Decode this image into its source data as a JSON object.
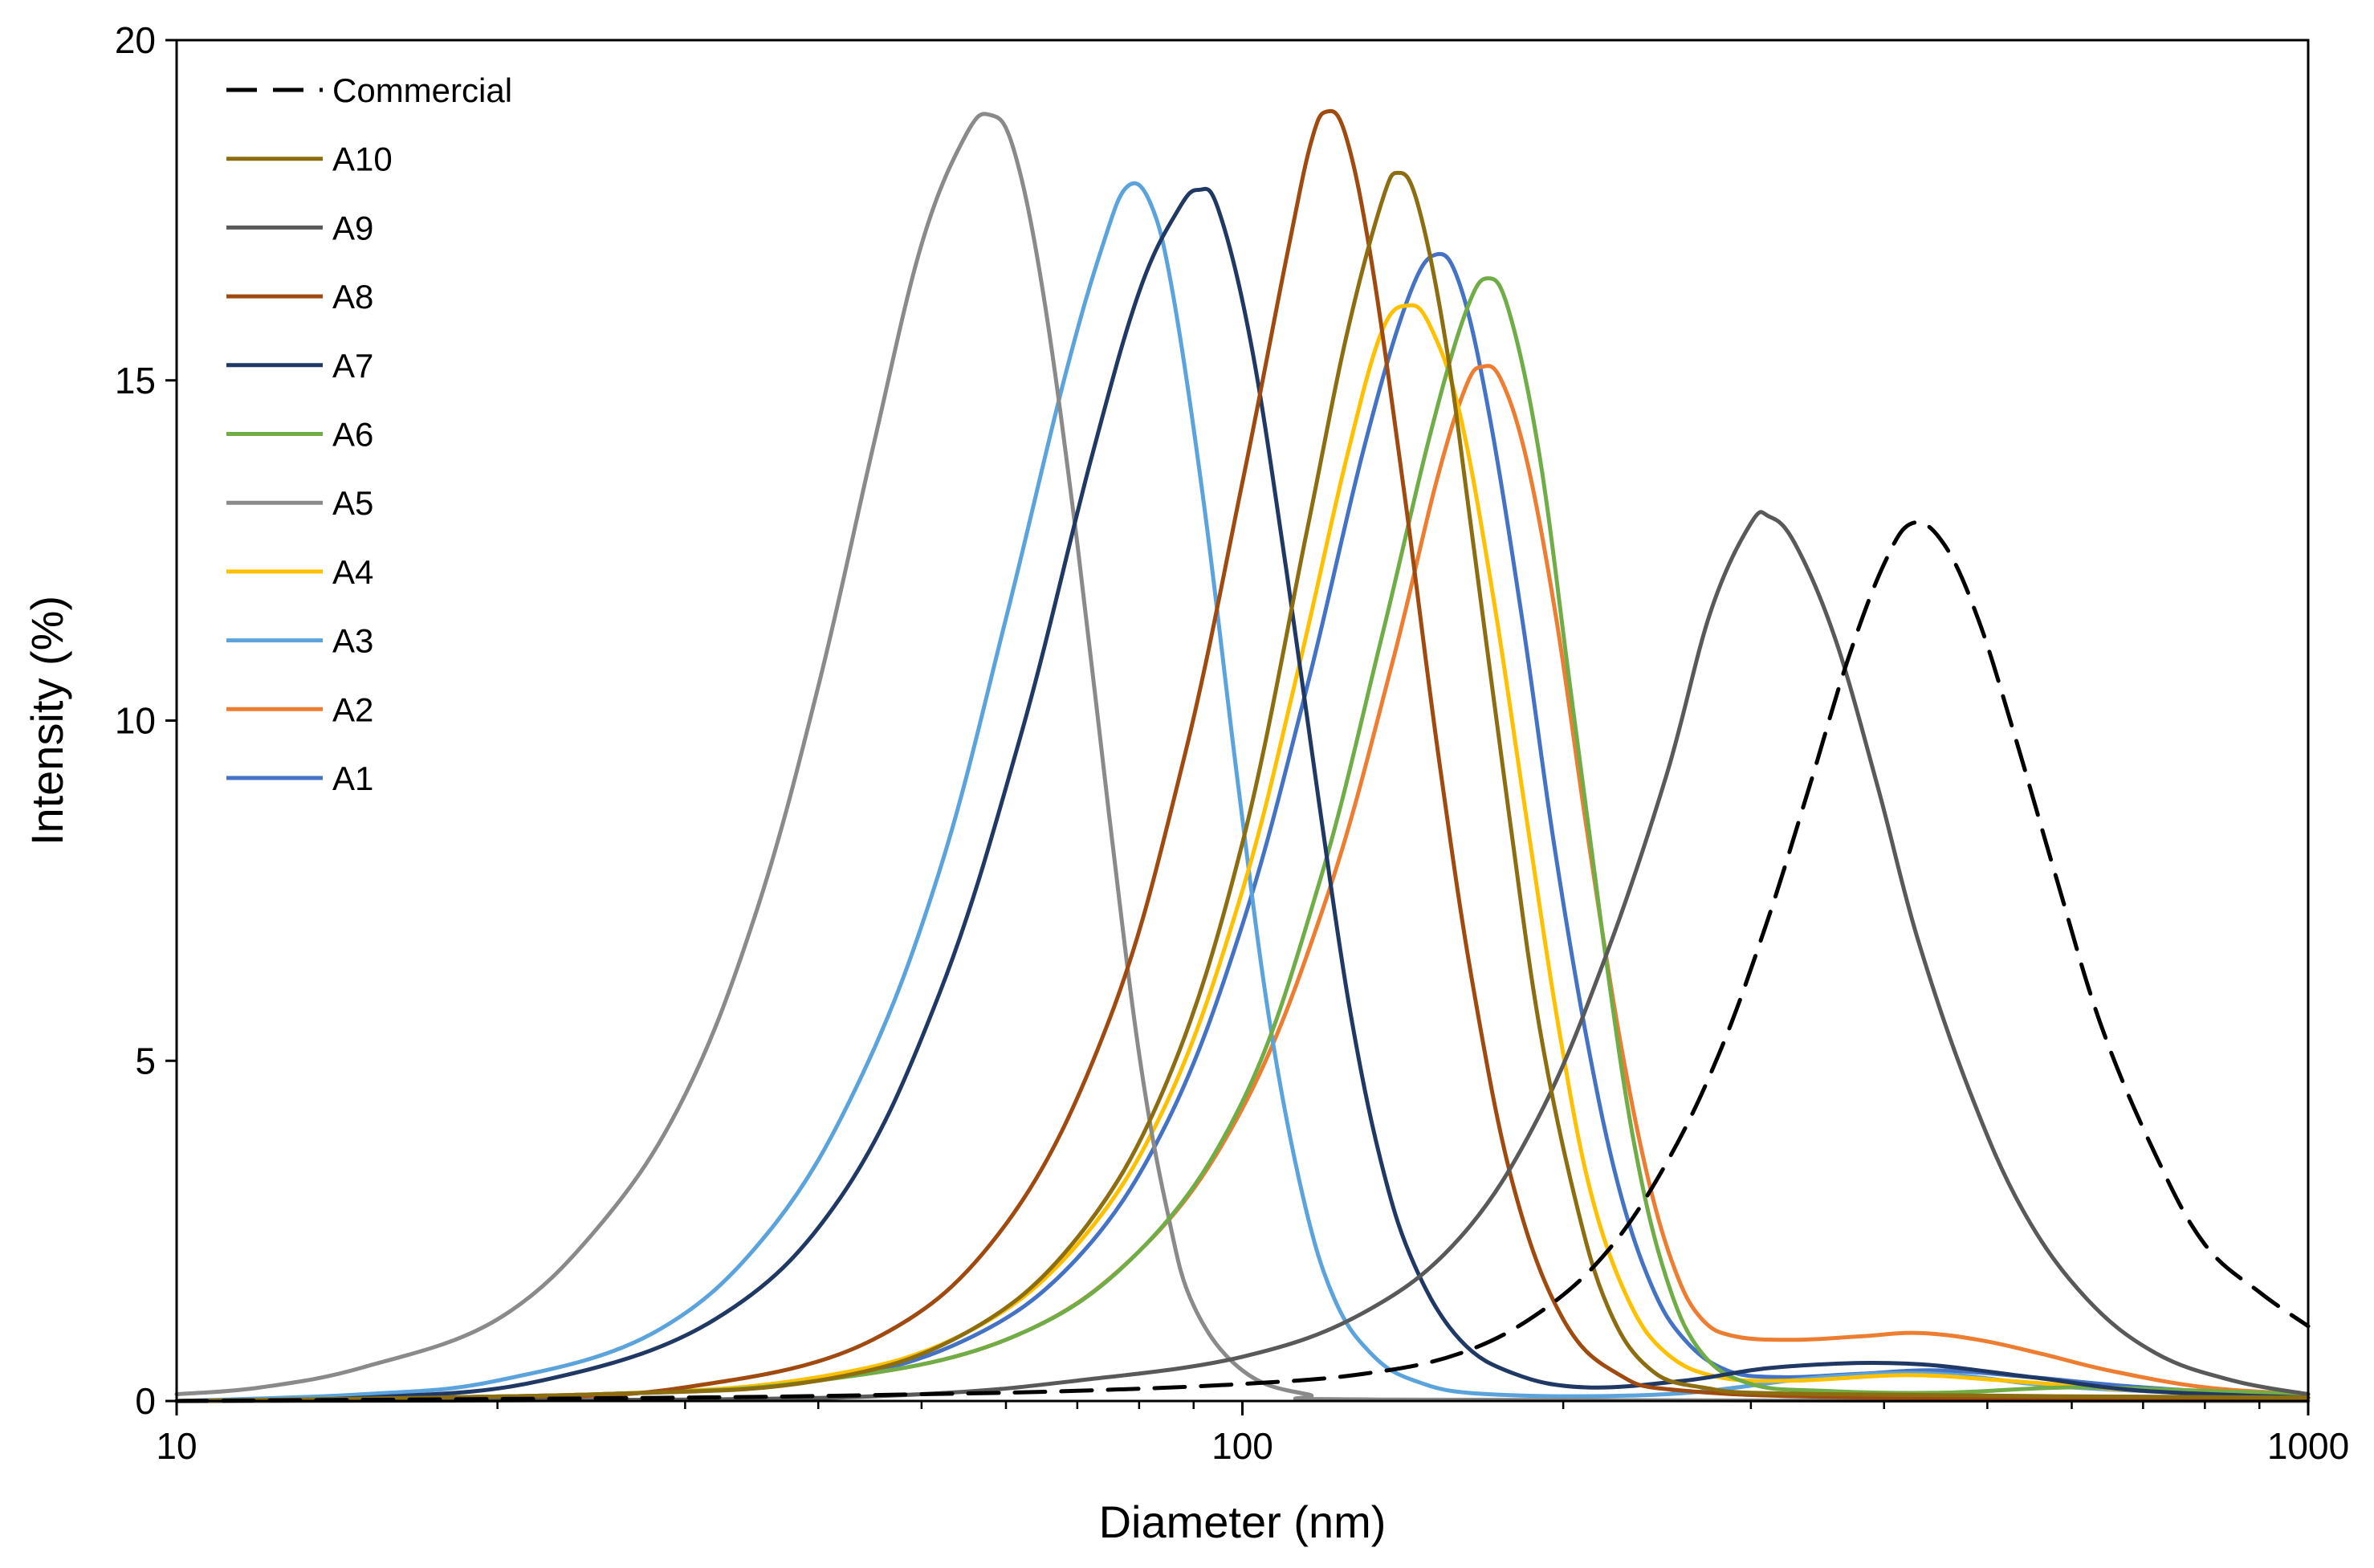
{
  "chart_data": {
    "type": "line",
    "title": "",
    "xlabel": "Diameter (nm)",
    "ylabel": "Intensity (%)",
    "xscale": "log",
    "xlim": [
      10,
      1000
    ],
    "ylim": [
      0,
      20
    ],
    "xticks": [
      10,
      100,
      1000
    ],
    "xtick_labels": [
      "10",
      "100",
      "1000"
    ],
    "yticks": [
      0,
      5,
      10,
      15,
      20
    ],
    "ytick_labels": [
      "0",
      "5",
      "10",
      "15",
      "20"
    ],
    "grid": false,
    "legend_position": "top-left",
    "series": [
      {
        "name": "Commercial",
        "color": "#000000",
        "style": "dashed",
        "width": 5,
        "points": [
          [
            10,
            0
          ],
          [
            30,
            0.05
          ],
          [
            50,
            0.1
          ],
          [
            70,
            0.15
          ],
          [
            100,
            0.25
          ],
          [
            130,
            0.4
          ],
          [
            160,
            0.7
          ],
          [
            190,
            1.3
          ],
          [
            220,
            2.2
          ],
          [
            250,
            3.5
          ],
          [
            280,
            5.1
          ],
          [
            310,
            7.0
          ],
          [
            340,
            9.0
          ],
          [
            370,
            10.9
          ],
          [
            400,
            12.3
          ],
          [
            425,
            12.9
          ],
          [
            455,
            12.6
          ],
          [
            490,
            11.5
          ],
          [
            530,
            9.8
          ],
          [
            580,
            7.7
          ],
          [
            640,
            5.5
          ],
          [
            720,
            3.6
          ],
          [
            800,
            2.3
          ],
          [
            900,
            1.6
          ],
          [
            1000,
            1.1
          ]
        ]
      },
      {
        "name": "A10",
        "color": "#8c6d10",
        "style": "solid",
        "width": 5,
        "points": [
          [
            10,
            0
          ],
          [
            25,
            0.1
          ],
          [
            40,
            0.3
          ],
          [
            55,
            1.0
          ],
          [
            70,
            2.4
          ],
          [
            85,
            4.7
          ],
          [
            100,
            8.2
          ],
          [
            115,
            12.8
          ],
          [
            125,
            15.6
          ],
          [
            135,
            17.6
          ],
          [
            140,
            18.05
          ],
          [
            146,
            17.6
          ],
          [
            155,
            15.6
          ],
          [
            165,
            12.5
          ],
          [
            178,
            8.6
          ],
          [
            190,
            5.5
          ],
          [
            205,
            3.0
          ],
          [
            220,
            1.4
          ],
          [
            240,
            0.5
          ],
          [
            270,
            0.2
          ],
          [
            350,
            0.1
          ],
          [
            1000,
            0.05
          ]
        ]
      },
      {
        "name": "A9",
        "color": "#595959",
        "style": "solid",
        "width": 5,
        "points": [
          [
            10,
            0
          ],
          [
            30,
            0.02
          ],
          [
            50,
            0.1
          ],
          [
            70,
            0.3
          ],
          [
            100,
            0.65
          ],
          [
            130,
            1.3
          ],
          [
            160,
            2.4
          ],
          [
            190,
            4.2
          ],
          [
            220,
            6.6
          ],
          [
            250,
            9.2
          ],
          [
            275,
            11.6
          ],
          [
            300,
            12.9
          ],
          [
            312,
            13.0
          ],
          [
            330,
            12.6
          ],
          [
            360,
            11.2
          ],
          [
            395,
            9.0
          ],
          [
            430,
            6.8
          ],
          [
            480,
            4.6
          ],
          [
            540,
            2.8
          ],
          [
            620,
            1.5
          ],
          [
            720,
            0.7
          ],
          [
            850,
            0.3
          ],
          [
            1000,
            0.1
          ]
        ]
      },
      {
        "name": "A8",
        "color": "#a14a10",
        "style": "solid",
        "width": 5,
        "points": [
          [
            10,
            0
          ],
          [
            20,
            0.05
          ],
          [
            30,
            0.2
          ],
          [
            45,
            0.9
          ],
          [
            60,
            2.6
          ],
          [
            75,
            5.6
          ],
          [
            88,
            9.4
          ],
          [
            100,
            13.5
          ],
          [
            110,
            16.8
          ],
          [
            116,
            18.5
          ],
          [
            120,
            18.95
          ],
          [
            125,
            18.6
          ],
          [
            132,
            16.8
          ],
          [
            142,
            13.3
          ],
          [
            153,
            9.4
          ],
          [
            165,
            6.0
          ],
          [
            180,
            3.1
          ],
          [
            200,
            1.2
          ],
          [
            225,
            0.4
          ],
          [
            260,
            0.15
          ],
          [
            400,
            0.05
          ],
          [
            1000,
            0.05
          ]
        ]
      },
      {
        "name": "A7",
        "color": "#1f3864",
        "style": "solid",
        "width": 5,
        "points": [
          [
            10,
            0
          ],
          [
            15,
            0.05
          ],
          [
            22,
            0.3
          ],
          [
            32,
            1.2
          ],
          [
            42,
            3.0
          ],
          [
            52,
            6.0
          ],
          [
            62,
            9.8
          ],
          [
            72,
            13.8
          ],
          [
            80,
            16.3
          ],
          [
            87,
            17.5
          ],
          [
            91,
            17.8
          ],
          [
            95,
            17.5
          ],
          [
            102,
            15.5
          ],
          [
            110,
            12.2
          ],
          [
            118,
            8.8
          ],
          [
            126,
            5.8
          ],
          [
            135,
            3.5
          ],
          [
            145,
            2.0
          ],
          [
            160,
            0.9
          ],
          [
            180,
            0.4
          ],
          [
            210,
            0.2
          ],
          [
            260,
            0.3
          ],
          [
            320,
            0.5
          ],
          [
            420,
            0.55
          ],
          [
            550,
            0.35
          ],
          [
            700,
            0.15
          ],
          [
            1000,
            0.05
          ]
        ]
      },
      {
        "name": "A6",
        "color": "#70ad47",
        "style": "solid",
        "width": 5,
        "points": [
          [
            10,
            0
          ],
          [
            25,
            0.1
          ],
          [
            40,
            0.3
          ],
          [
            60,
            0.9
          ],
          [
            80,
            2.2
          ],
          [
            100,
            4.4
          ],
          [
            118,
            7.6
          ],
          [
            135,
            11.2
          ],
          [
            150,
            14.2
          ],
          [
            162,
            16.0
          ],
          [
            170,
            16.5
          ],
          [
            178,
            16.0
          ],
          [
            190,
            13.9
          ],
          [
            203,
            10.5
          ],
          [
            218,
            6.8
          ],
          [
            233,
            3.8
          ],
          [
            250,
            1.8
          ],
          [
            270,
            0.7
          ],
          [
            300,
            0.25
          ],
          [
            350,
            0.15
          ],
          [
            450,
            0.12
          ],
          [
            600,
            0.2
          ],
          [
            800,
            0.15
          ],
          [
            1000,
            0.1
          ]
        ]
      },
      {
        "name": "A5",
        "color": "#8a8a8a",
        "style": "solid",
        "width": 5,
        "points": [
          [
            10,
            0.1
          ],
          [
            12,
            0.2
          ],
          [
            15,
            0.5
          ],
          [
            20,
            1.2
          ],
          [
            25,
            2.6
          ],
          [
            30,
            4.5
          ],
          [
            35,
            7.2
          ],
          [
            40,
            10.5
          ],
          [
            45,
            14.0
          ],
          [
            50,
            17.0
          ],
          [
            55,
            18.6
          ],
          [
            58,
            18.9
          ],
          [
            61,
            18.4
          ],
          [
            65,
            16.3
          ],
          [
            70,
            12.6
          ],
          [
            75,
            8.6
          ],
          [
            80,
            5.1
          ],
          [
            85,
            2.8
          ],
          [
            90,
            1.4
          ],
          [
            100,
            0.45
          ],
          [
            115,
            0.1
          ],
          [
            140,
            0.02
          ],
          [
            1000,
            0
          ]
        ]
      },
      {
        "name": "A4",
        "color": "#ffc000",
        "style": "solid",
        "width": 5,
        "points": [
          [
            10,
            0
          ],
          [
            25,
            0.1
          ],
          [
            40,
            0.35
          ],
          [
            55,
            1.0
          ],
          [
            70,
            2.3
          ],
          [
            85,
            4.4
          ],
          [
            100,
            7.5
          ],
          [
            113,
            10.8
          ],
          [
            125,
            13.8
          ],
          [
            135,
            15.7
          ],
          [
            143,
            16.1
          ],
          [
            150,
            15.8
          ],
          [
            160,
            14.5
          ],
          [
            172,
            11.8
          ],
          [
            185,
            8.5
          ],
          [
            198,
            5.5
          ],
          [
            212,
            3.1
          ],
          [
            230,
            1.5
          ],
          [
            250,
            0.7
          ],
          [
            280,
            0.35
          ],
          [
            330,
            0.3
          ],
          [
            420,
            0.38
          ],
          [
            520,
            0.3
          ],
          [
            700,
            0.15
          ],
          [
            1000,
            0.05
          ]
        ]
      },
      {
        "name": "A3",
        "color": "#5ba3dd",
        "style": "solid",
        "width": 5,
        "points": [
          [
            10,
            0
          ],
          [
            15,
            0.1
          ],
          [
            20,
            0.3
          ],
          [
            28,
            1.0
          ],
          [
            36,
            2.5
          ],
          [
            44,
            4.8
          ],
          [
            52,
            7.8
          ],
          [
            60,
            11.5
          ],
          [
            68,
            15.0
          ],
          [
            74,
            17.0
          ],
          [
            78,
            17.85
          ],
          [
            82,
            17.6
          ],
          [
            86,
            16.3
          ],
          [
            92,
            13.2
          ],
          [
            99,
            9.1
          ],
          [
            106,
            5.6
          ],
          [
            114,
            3.0
          ],
          [
            122,
            1.5
          ],
          [
            132,
            0.7
          ],
          [
            145,
            0.3
          ],
          [
            170,
            0.1
          ],
          [
            250,
            0.1
          ],
          [
            350,
            0.35
          ],
          [
            450,
            0.4
          ],
          [
            600,
            0.2
          ],
          [
            1000,
            0.05
          ]
        ]
      },
      {
        "name": "A2",
        "color": "#ed7d31",
        "style": "solid",
        "width": 5,
        "points": [
          [
            10,
            0
          ],
          [
            25,
            0.1
          ],
          [
            40,
            0.3
          ],
          [
            60,
            0.9
          ],
          [
            80,
            2.2
          ],
          [
            100,
            4.3
          ],
          [
            120,
            7.4
          ],
          [
            138,
            10.8
          ],
          [
            152,
            13.5
          ],
          [
            162,
            14.9
          ],
          [
            168,
            15.2
          ],
          [
            175,
            15.0
          ],
          [
            185,
            13.8
          ],
          [
            197,
            11.5
          ],
          [
            210,
            8.5
          ],
          [
            225,
            5.5
          ],
          [
            240,
            3.3
          ],
          [
            255,
            1.9
          ],
          [
            270,
            1.2
          ],
          [
            290,
            0.95
          ],
          [
            330,
            0.9
          ],
          [
            380,
            0.95
          ],
          [
            430,
            1.0
          ],
          [
            490,
            0.9
          ],
          [
            560,
            0.7
          ],
          [
            650,
            0.45
          ],
          [
            800,
            0.2
          ],
          [
            1000,
            0.1
          ]
        ]
      },
      {
        "name": "A1",
        "color": "#4472c4",
        "style": "solid",
        "width": 5,
        "points": [
          [
            10,
            0
          ],
          [
            25,
            0.1
          ],
          [
            40,
            0.3
          ],
          [
            55,
            0.9
          ],
          [
            70,
            2.1
          ],
          [
            85,
            4.1
          ],
          [
            100,
            7.0
          ],
          [
            115,
            10.5
          ],
          [
            130,
            14.0
          ],
          [
            143,
            16.2
          ],
          [
            152,
            16.85
          ],
          [
            160,
            16.4
          ],
          [
            170,
            14.6
          ],
          [
            183,
            11.5
          ],
          [
            196,
            8.2
          ],
          [
            210,
            5.4
          ],
          [
            225,
            3.2
          ],
          [
            242,
            1.7
          ],
          [
            260,
            0.9
          ],
          [
            285,
            0.45
          ],
          [
            320,
            0.35
          ],
          [
            380,
            0.4
          ],
          [
            450,
            0.45
          ],
          [
            550,
            0.35
          ],
          [
            700,
            0.2
          ],
          [
            1000,
            0.05
          ]
        ]
      }
    ]
  }
}
